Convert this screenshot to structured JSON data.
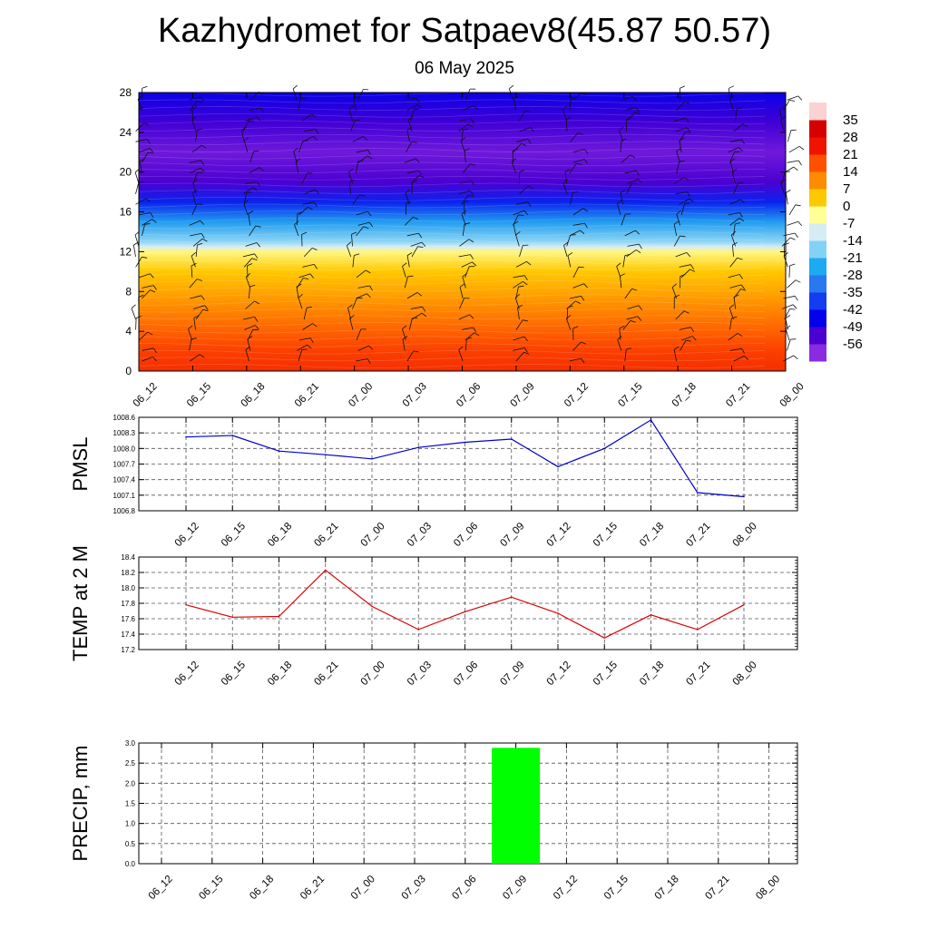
{
  "header": {
    "title": "Kazhydromet for Satpaev8(45.87 50.57)",
    "subtitle": "06 May 2025"
  },
  "colors": {
    "pmsl_line": "#0000cc",
    "temp_line": "#dd0000",
    "precip_bar": "#00ff00",
    "grid": "#555555"
  },
  "chart_data": [
    {
      "type": "heatmap",
      "title": "",
      "xlabel": "",
      "ylabel": "",
      "x": [
        "06_12",
        "06_15",
        "06_18",
        "06_21",
        "07_00",
        "07_03",
        "07_06",
        "07_09",
        "07_12",
        "07_15",
        "07_18",
        "07_21",
        "08_00"
      ],
      "yticks": [
        0,
        4,
        8,
        12,
        16,
        20,
        24,
        28
      ],
      "ylim": [
        0,
        28
      ],
      "color_scale": [
        -56,
        -49,
        -42,
        -35,
        -28,
        -21,
        -14,
        -7,
        0,
        7,
        14,
        21,
        28,
        35
      ],
      "profile_by_level": [
        {
          "level": 0,
          "value": 18
        },
        {
          "level": 2,
          "value": 16
        },
        {
          "level": 4,
          "value": 12
        },
        {
          "level": 6,
          "value": 8
        },
        {
          "level": 8,
          "value": 4
        },
        {
          "level": 10,
          "value": 0
        },
        {
          "level": 12,
          "value": -6
        },
        {
          "level": 12.5,
          "value": -14
        },
        {
          "level": 13,
          "value": -20
        },
        {
          "level": 15,
          "value": -30
        },
        {
          "level": 17,
          "value": -45
        },
        {
          "level": 19,
          "value": -56
        },
        {
          "level": 22,
          "value": -60
        },
        {
          "level": 25,
          "value": -55
        },
        {
          "level": 28,
          "value": -50
        }
      ],
      "wind_barbs": true,
      "grid": false
    },
    {
      "type": "line",
      "ylabel": "PMSL",
      "xlabel": "",
      "categories": [
        "06_12",
        "06_15",
        "06_18",
        "06_21",
        "07_00",
        "07_03",
        "07_06",
        "07_09",
        "07_12",
        "07_15",
        "07_18",
        "07_21",
        "08_00"
      ],
      "values": [
        1008.22,
        1008.25,
        1007.95,
        1007.88,
        1007.8,
        1008.02,
        1008.12,
        1008.18,
        1007.65,
        1008.0,
        1008.55,
        1007.15,
        1007.07
      ],
      "yticks": [
        "1006.8",
        "1007.1",
        "1007.4",
        "1007.7",
        "1008.0",
        "1008.3",
        "1008.6"
      ],
      "ylim": [
        1006.8,
        1008.6
      ],
      "grid": true
    },
    {
      "type": "line",
      "ylabel": "TEMP at 2 M",
      "xlabel": "",
      "categories": [
        "06_12",
        "06_15",
        "06_18",
        "06_21",
        "07_00",
        "07_03",
        "07_06",
        "07_09",
        "07_12",
        "07_15",
        "07_18",
        "07_21",
        "08_00"
      ],
      "values": [
        17.78,
        17.62,
        17.63,
        18.23,
        17.76,
        17.46,
        17.69,
        17.88,
        17.67,
        17.35,
        17.65,
        17.46,
        17.78
      ],
      "yticks": [
        "17.2",
        "17.4",
        "17.6",
        "17.8",
        "18.0",
        "18.2",
        "18.4"
      ],
      "ylim": [
        17.2,
        18.4
      ],
      "grid": true
    },
    {
      "type": "bar",
      "ylabel": "PRECIP, mm",
      "xlabel": "",
      "categories": [
        "06_12",
        "06_15",
        "06_18",
        "06_21",
        "07_00",
        "07_03",
        "07_06",
        "07_09",
        "07_12",
        "07_15",
        "07_18",
        "07_21",
        "08_00"
      ],
      "values": [
        0,
        0,
        0,
        0,
        0,
        0,
        0,
        2.88,
        0,
        0,
        0,
        0,
        0
      ],
      "yticks": [
        "0.0",
        "0.5",
        "1.0",
        "1.5",
        "2.0",
        "2.5",
        "3.0"
      ],
      "ylim": [
        0,
        3.0
      ],
      "grid": true
    }
  ]
}
